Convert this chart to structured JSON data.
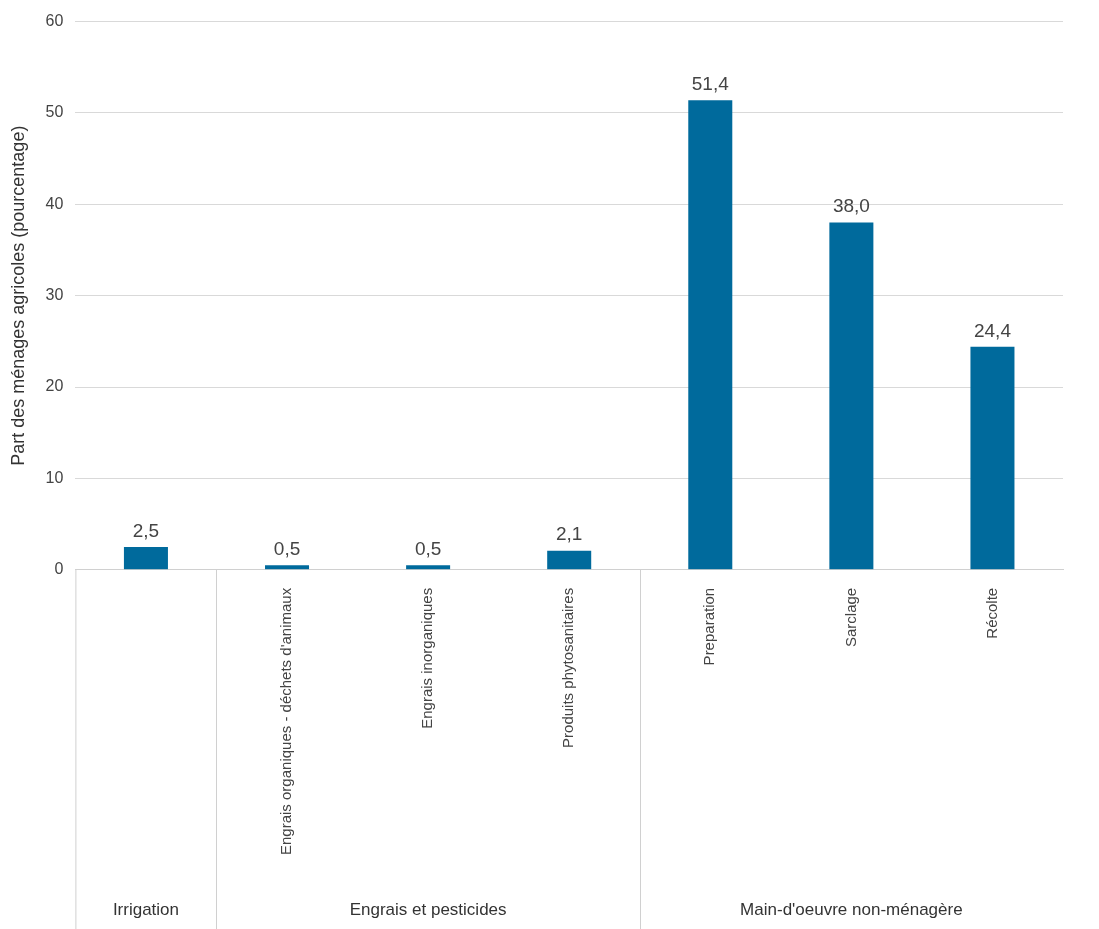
{
  "chart_data": {
    "type": "bar",
    "ylabel": "Part des ménages agricoles (pourcentage)",
    "categories": [
      null,
      "Engrais organiques - déchets d'animaux",
      "Engrais inorganiques",
      "Produits phytosanitaires",
      "Preparation",
      "Sarclage",
      "Récolte"
    ],
    "values": [
      2.5,
      0.5,
      0.5,
      2.1,
      51.4,
      38.0,
      24.4
    ],
    "value_labels": [
      "2,5",
      "0,5",
      "0,5",
      "2,1",
      "51,4",
      "38,0",
      "24,4"
    ],
    "color": "#006a9c",
    "ylim": [
      0,
      60
    ],
    "yticks": [
      0,
      10,
      20,
      30,
      40,
      50,
      60
    ],
    "grid": "y",
    "legend": false,
    "annotations": [
      "Irrigation",
      "Engrais et pesticides",
      "Main-d'oeuvre non-ménagère"
    ]
  }
}
